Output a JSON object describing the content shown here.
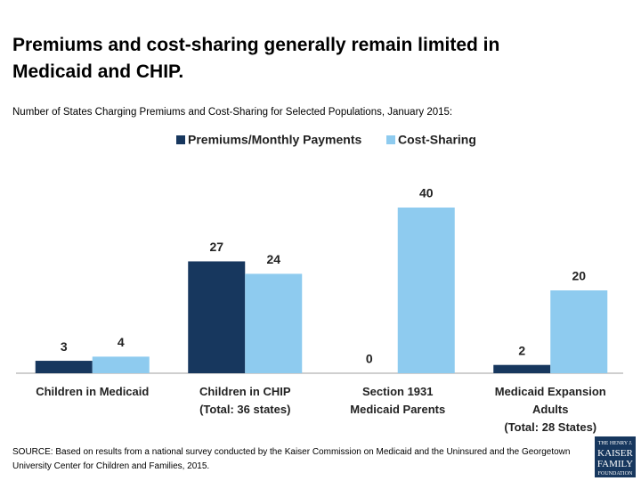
{
  "chart_data": {
    "type": "bar",
    "title": "Premiums and cost-sharing generally remain limited in Medicaid and CHIP.",
    "subtitle": "Number of States Charging Premiums and Cost-Sharing for Selected Populations, January 2015:",
    "categories": [
      "Children in Medicaid",
      "Children in CHIP\n(Total: 36 states)",
      "Section 1931\nMedicaid Parents",
      "Medicaid Expansion\nAdults\n(Total: 28 States)"
    ],
    "series": [
      {
        "name": "Premiums/Monthly Payments",
        "color": "#17375e",
        "values": [
          3,
          27,
          0,
          2
        ]
      },
      {
        "name": "Cost-Sharing",
        "color": "#8ecbef",
        "values": [
          4,
          24,
          40,
          20
        ]
      }
    ],
    "ylim": [
      0,
      40
    ],
    "legend": "top",
    "source": "SOURCE: Based on results from a national survey conducted by the Kaiser Commission on Medicaid and the Uninsured and the Georgetown University Center for Children and Families, 2015.",
    "logo": [
      "THE HENRY J.",
      "KAISER",
      "FAMILY",
      "FOUNDATION"
    ]
  }
}
